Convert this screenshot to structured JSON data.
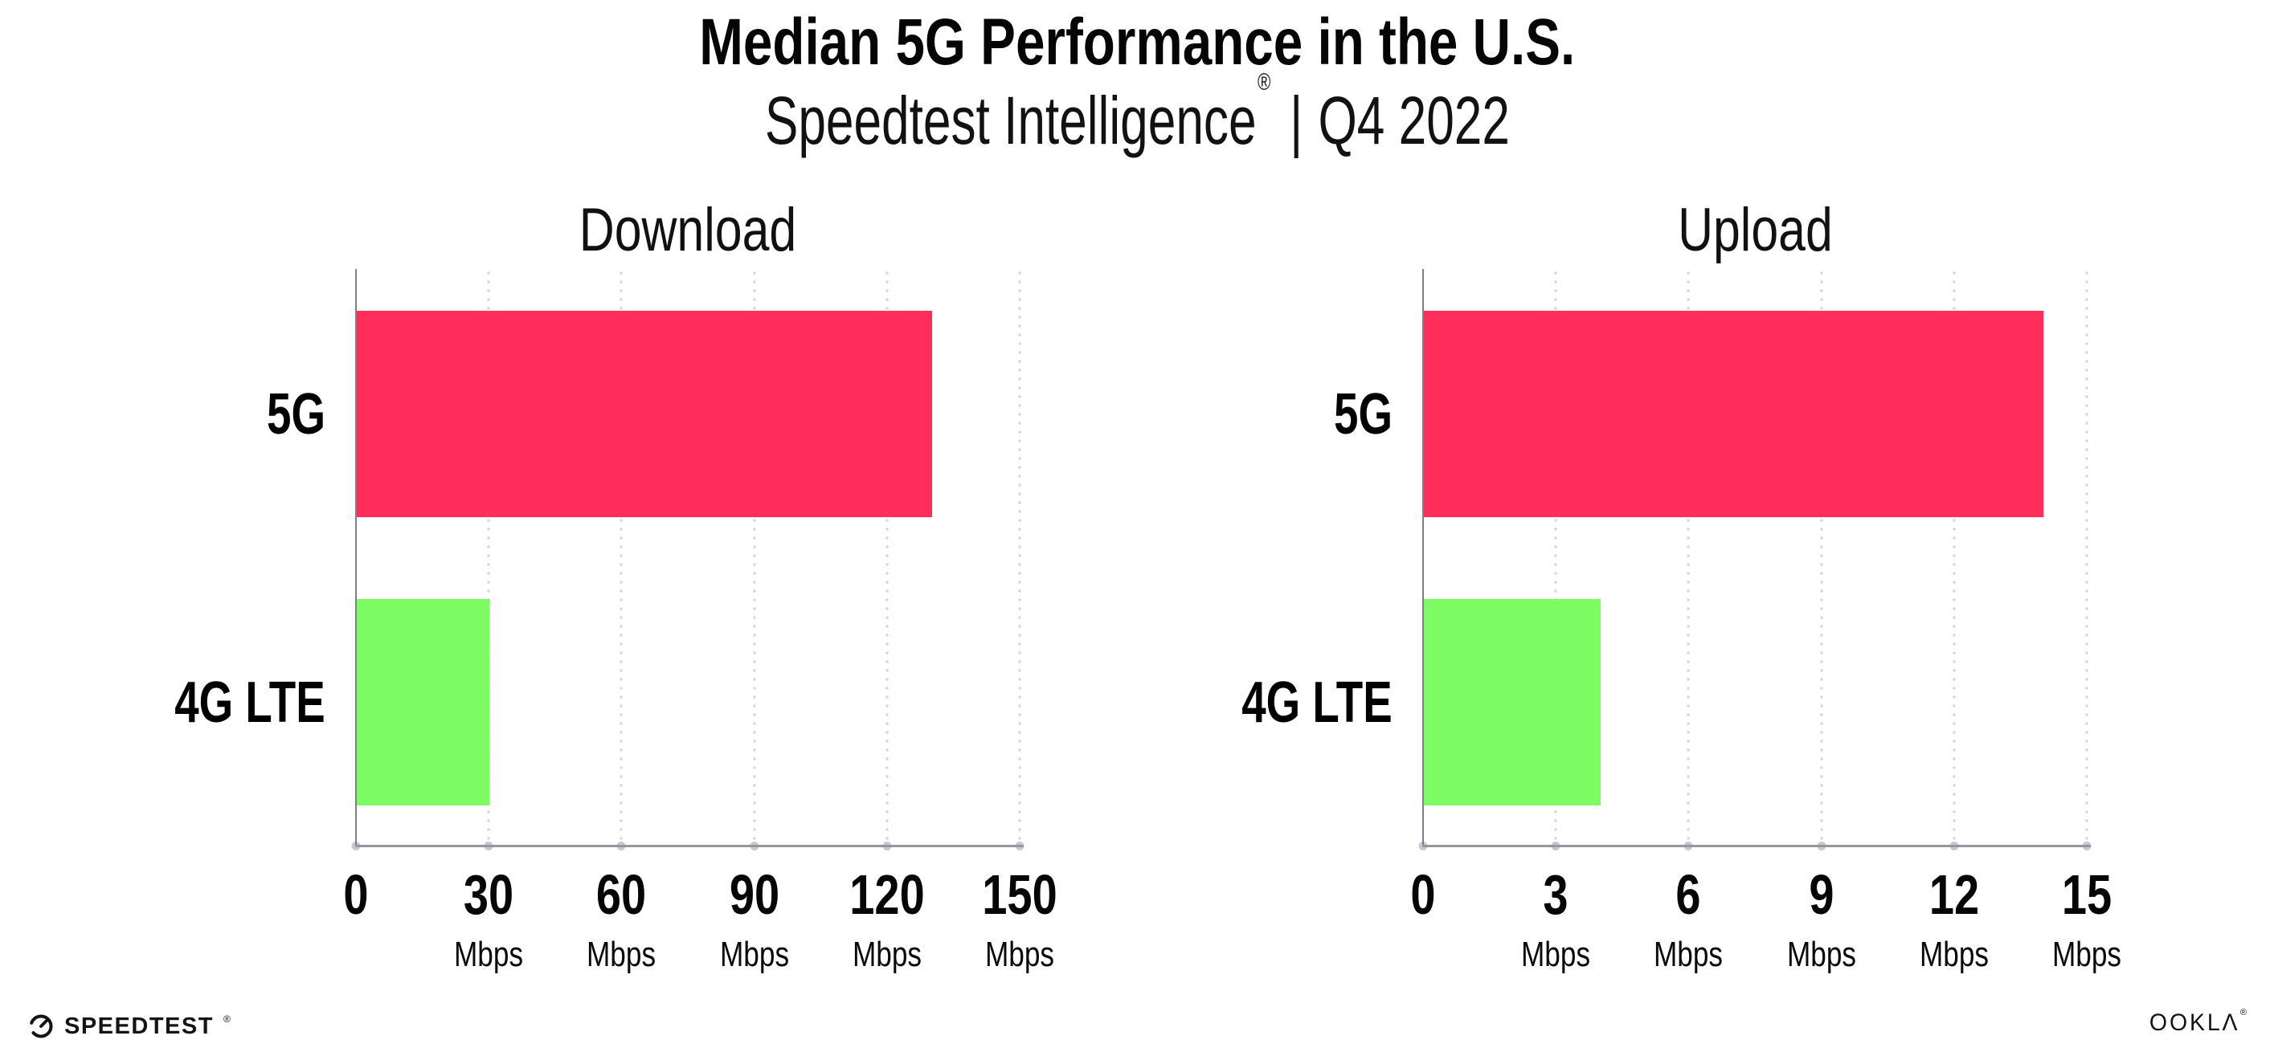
{
  "header": {
    "title": "Median 5G Performance in the U.S.",
    "subtitle_brand": "Speedtest Intelligence",
    "registered_mark": "®",
    "subtitle_sep": "|",
    "subtitle_period": "Q4 2022"
  },
  "chart_data": [
    {
      "type": "bar",
      "orientation": "horizontal",
      "title": "Download",
      "categories": [
        "5G",
        "4G LTE"
      ],
      "values": [
        130,
        30
      ],
      "unit": "Mbps",
      "xlim": [
        0,
        150
      ],
      "xticks": [
        0,
        30,
        60,
        90,
        120,
        150
      ],
      "bar_colors": [
        "#FF2E5B",
        "#7EFC64"
      ],
      "grid": "vertical-dotted",
      "legend": "none"
    },
    {
      "type": "bar",
      "orientation": "horizontal",
      "title": "Upload",
      "categories": [
        "5G",
        "4G LTE"
      ],
      "values": [
        14,
        4
      ],
      "unit": "Mbps",
      "xlim": [
        0,
        15
      ],
      "xticks": [
        0,
        3,
        6,
        9,
        12,
        15
      ],
      "bar_colors": [
        "#FF2E5B",
        "#7EFC64"
      ],
      "grid": "vertical-dotted",
      "legend": "none"
    }
  ],
  "footer": {
    "speedtest_label": "SPEEDTEST",
    "speedtest_mark": "®",
    "ookla_label": "OOKLΛ",
    "ookla_mark": "®"
  },
  "colors": {
    "bar_5g": "#FF2E5B",
    "bar_4g_lte": "#7EFC64",
    "gridline_dots": "#D8D8E2",
    "axis_line": "#97979C",
    "text": "#0D0D0D"
  }
}
